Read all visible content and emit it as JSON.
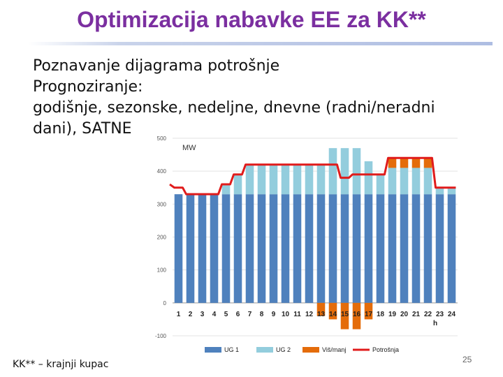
{
  "slide": {
    "title": "Optimizacija nabavke EE za KK**",
    "bullets": [
      "Poznavanje dijagrama potrošnje",
      "Prognoziranje:",
      "godišnje, sezonske, nedeljne, dnevne (radni/neradni",
      "dani), SATNE"
    ],
    "footer": "KK** – krajnji kupac",
    "page_number": "25"
  },
  "chart_data": {
    "type": "bar",
    "ylabel": "MW",
    "xlabel": "h",
    "ylim": [
      -100,
      500
    ],
    "yticks": [
      -100,
      0,
      100,
      200,
      300,
      400,
      500
    ],
    "categories": [
      "1",
      "2",
      "3",
      "4",
      "5",
      "6",
      "7",
      "8",
      "9",
      "10",
      "11",
      "12",
      "13",
      "14",
      "15",
      "16",
      "17",
      "18",
      "19",
      "20",
      "21",
      "22",
      "23",
      "24"
    ],
    "legend_position": "bottom",
    "colors": {
      "ug1": "#4f81bd",
      "ug2": "#93cddd",
      "visak": "#e46c0a",
      "potrosnja": "#e01b1b"
    },
    "series": [
      {
        "name": "UG 1",
        "kind": "bar",
        "values": [
          330,
          330,
          330,
          330,
          330,
          330,
          330,
          330,
          330,
          330,
          330,
          330,
          330,
          330,
          330,
          330,
          330,
          330,
          330,
          330,
          330,
          330,
          330,
          330
        ]
      },
      {
        "name": "UG 2",
        "kind": "bar",
        "values": [
          0,
          0,
          0,
          0,
          30,
          60,
          90,
          90,
          90,
          90,
          90,
          90,
          90,
          140,
          140,
          140,
          100,
          60,
          80,
          80,
          80,
          80,
          20,
          20
        ]
      },
      {
        "name": "Viš/manj",
        "kind": "bar",
        "values": [
          0,
          0,
          0,
          0,
          0,
          0,
          0,
          0,
          0,
          0,
          0,
          0,
          -40,
          -50,
          -80,
          -80,
          -50,
          0,
          30,
          30,
          30,
          30,
          0,
          0
        ]
      },
      {
        "name": "Potrošnja",
        "kind": "line",
        "values": [
          350,
          330,
          330,
          330,
          360,
          390,
          420,
          420,
          420,
          420,
          420,
          420,
          420,
          420,
          380,
          390,
          390,
          390,
          440,
          440,
          440,
          440,
          350,
          350
        ]
      }
    ]
  }
}
